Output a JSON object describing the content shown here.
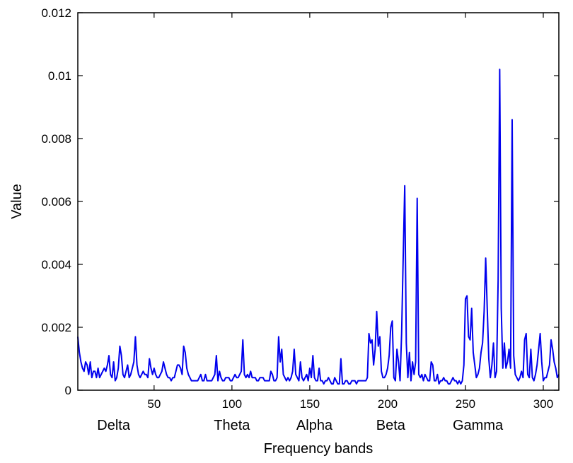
{
  "chart_data": {
    "type": "line",
    "xlabel": "Frequency bands",
    "ylabel": "Value",
    "xlim": [
      1,
      310
    ],
    "ylim": [
      0,
      0.012
    ],
    "x_ticks": [
      50,
      100,
      150,
      200,
      250,
      300
    ],
    "y_ticks": [
      0,
      0.002,
      0.004,
      0.006,
      0.008,
      0.01,
      0.012
    ],
    "y_tick_labels": [
      "0",
      "0.002",
      "0.004",
      "0.006",
      "0.008",
      "0.01",
      "0.012"
    ],
    "grid": false,
    "band_labels": [
      {
        "text": "Delta",
        "x": 24
      },
      {
        "text": "Theta",
        "x": 100
      },
      {
        "text": "Alpha",
        "x": 153
      },
      {
        "text": "Beta",
        "x": 202
      },
      {
        "text": "Gamma",
        "x": 258
      }
    ],
    "series": [
      {
        "color": "#0000ee",
        "points": [
          [
            1,
            0.0017
          ],
          [
            2,
            0.0012
          ],
          [
            3,
            0.0009
          ],
          [
            4,
            0.0007
          ],
          [
            5,
            0.0006
          ],
          [
            6,
            0.0009
          ],
          [
            7,
            0.0008
          ],
          [
            8,
            0.0005
          ],
          [
            9,
            0.0009
          ],
          [
            10,
            0.0004
          ],
          [
            11,
            0.0006
          ],
          [
            12,
            0.0006
          ],
          [
            13,
            0.0004
          ],
          [
            14,
            0.0007
          ],
          [
            15,
            0.0004
          ],
          [
            16,
            0.0005
          ],
          [
            17,
            0.0006
          ],
          [
            18,
            0.0007
          ],
          [
            19,
            0.0006
          ],
          [
            20,
            0.0008
          ],
          [
            21,
            0.0011
          ],
          [
            22,
            0.0005
          ],
          [
            23,
            0.0004
          ],
          [
            24,
            0.0009
          ],
          [
            25,
            0.0003
          ],
          [
            26,
            0.0004
          ],
          [
            27,
            0.0007
          ],
          [
            28,
            0.0014
          ],
          [
            29,
            0.0011
          ],
          [
            30,
            0.0005
          ],
          [
            31,
            0.0004
          ],
          [
            32,
            0.0006
          ],
          [
            33,
            0.0008
          ],
          [
            34,
            0.0004
          ],
          [
            35,
            0.0005
          ],
          [
            36,
            0.0007
          ],
          [
            37,
            0.0009
          ],
          [
            38,
            0.0017
          ],
          [
            39,
            0.0008
          ],
          [
            40,
            0.0005
          ],
          [
            41,
            0.0004
          ],
          [
            42,
            0.0005
          ],
          [
            43,
            0.0006
          ],
          [
            44,
            0.0005
          ],
          [
            45,
            0.0005
          ],
          [
            46,
            0.0004
          ],
          [
            47,
            0.001
          ],
          [
            48,
            0.0007
          ],
          [
            49,
            0.0005
          ],
          [
            50,
            0.0007
          ],
          [
            51,
            0.0005
          ],
          [
            52,
            0.0004
          ],
          [
            53,
            0.0004
          ],
          [
            54,
            0.0005
          ],
          [
            55,
            0.0006
          ],
          [
            56,
            0.0009
          ],
          [
            57,
            0.0007
          ],
          [
            58,
            0.0005
          ],
          [
            59,
            0.0004
          ],
          [
            60,
            0.0004
          ],
          [
            61,
            0.0003
          ],
          [
            62,
            0.0004
          ],
          [
            63,
            0.0004
          ],
          [
            64,
            0.0006
          ],
          [
            65,
            0.0008
          ],
          [
            66,
            0.0008
          ],
          [
            67,
            0.0007
          ],
          [
            68,
            0.0005
          ],
          [
            69,
            0.0014
          ],
          [
            70,
            0.0012
          ],
          [
            71,
            0.0007
          ],
          [
            72,
            0.0005
          ],
          [
            73,
            0.0004
          ],
          [
            74,
            0.0003
          ],
          [
            75,
            0.0003
          ],
          [
            76,
            0.0003
          ],
          [
            77,
            0.0003
          ],
          [
            78,
            0.0003
          ],
          [
            79,
            0.0004
          ],
          [
            80,
            0.0005
          ],
          [
            81,
            0.0003
          ],
          [
            82,
            0.0003
          ],
          [
            83,
            0.0005
          ],
          [
            84,
            0.0003
          ],
          [
            85,
            0.0003
          ],
          [
            86,
            0.0003
          ],
          [
            87,
            0.0003
          ],
          [
            88,
            0.0004
          ],
          [
            89,
            0.0005
          ],
          [
            90,
            0.0011
          ],
          [
            91,
            0.0003
          ],
          [
            92,
            0.0006
          ],
          [
            93,
            0.0004
          ],
          [
            94,
            0.0003
          ],
          [
            95,
            0.0003
          ],
          [
            96,
            0.0004
          ],
          [
            97,
            0.0004
          ],
          [
            98,
            0.0004
          ],
          [
            99,
            0.0003
          ],
          [
            100,
            0.0003
          ],
          [
            101,
            0.0004
          ],
          [
            102,
            0.0005
          ],
          [
            103,
            0.0004
          ],
          [
            104,
            0.0004
          ],
          [
            105,
            0.0005
          ],
          [
            106,
            0.0006
          ],
          [
            107,
            0.0016
          ],
          [
            108,
            0.0005
          ],
          [
            109,
            0.0004
          ],
          [
            110,
            0.0005
          ],
          [
            111,
            0.0004
          ],
          [
            112,
            0.0006
          ],
          [
            113,
            0.0004
          ],
          [
            114,
            0.0004
          ],
          [
            115,
            0.0004
          ],
          [
            116,
            0.0003
          ],
          [
            117,
            0.0003
          ],
          [
            118,
            0.0004
          ],
          [
            119,
            0.0004
          ],
          [
            120,
            0.0004
          ],
          [
            121,
            0.0003
          ],
          [
            122,
            0.0003
          ],
          [
            123,
            0.0003
          ],
          [
            124,
            0.0003
          ],
          [
            125,
            0.0006
          ],
          [
            126,
            0.0005
          ],
          [
            127,
            0.0003
          ],
          [
            128,
            0.0003
          ],
          [
            129,
            0.0004
          ],
          [
            130,
            0.0017
          ],
          [
            131,
            0.0009
          ],
          [
            132,
            0.0013
          ],
          [
            133,
            0.0005
          ],
          [
            134,
            0.0004
          ],
          [
            135,
            0.0003
          ],
          [
            136,
            0.0004
          ],
          [
            137,
            0.0003
          ],
          [
            138,
            0.0004
          ],
          [
            139,
            0.0006
          ],
          [
            140,
            0.0013
          ],
          [
            141,
            0.0005
          ],
          [
            142,
            0.0004
          ],
          [
            143,
            0.0003
          ],
          [
            144,
            0.0009
          ],
          [
            145,
            0.0004
          ],
          [
            146,
            0.0003
          ],
          [
            147,
            0.0004
          ],
          [
            148,
            0.0005
          ],
          [
            149,
            0.0003
          ],
          [
            150,
            0.0007
          ],
          [
            151,
            0.0004
          ],
          [
            152,
            0.0011
          ],
          [
            153,
            0.0004
          ],
          [
            154,
            0.0003
          ],
          [
            155,
            0.0003
          ],
          [
            156,
            0.0007
          ],
          [
            157,
            0.0003
          ],
          [
            158,
            0.0003
          ],
          [
            159,
            0.0002
          ],
          [
            160,
            0.0003
          ],
          [
            161,
            0.0003
          ],
          [
            162,
            0.0004
          ],
          [
            163,
            0.0003
          ],
          [
            164,
            0.0002
          ],
          [
            165,
            0.0002
          ],
          [
            166,
            0.0004
          ],
          [
            167,
            0.0003
          ],
          [
            168,
            0.0002
          ],
          [
            169,
            0.0002
          ],
          [
            170,
            0.001
          ],
          [
            171,
            0.0002
          ],
          [
            172,
            0.0002
          ],
          [
            173,
            0.0003
          ],
          [
            174,
            0.0003
          ],
          [
            175,
            0.0002
          ],
          [
            176,
            0.0002
          ],
          [
            177,
            0.0003
          ],
          [
            178,
            0.0003
          ],
          [
            179,
            0.0003
          ],
          [
            180,
            0.0002
          ],
          [
            181,
            0.0003
          ],
          [
            182,
            0.0003
          ],
          [
            183,
            0.0003
          ],
          [
            184,
            0.0003
          ],
          [
            185,
            0.0003
          ],
          [
            186,
            0.0003
          ],
          [
            187,
            0.0004
          ],
          [
            188,
            0.0018
          ],
          [
            189,
            0.0015
          ],
          [
            190,
            0.0016
          ],
          [
            191,
            0.0008
          ],
          [
            192,
            0.0013
          ],
          [
            193,
            0.0025
          ],
          [
            194,
            0.0014
          ],
          [
            195,
            0.0017
          ],
          [
            196,
            0.0006
          ],
          [
            197,
            0.0004
          ],
          [
            198,
            0.0004
          ],
          [
            199,
            0.0005
          ],
          [
            200,
            0.0007
          ],
          [
            201,
            0.0011
          ],
          [
            202,
            0.002
          ],
          [
            203,
            0.0022
          ],
          [
            204,
            0.0004
          ],
          [
            205,
            0.0003
          ],
          [
            206,
            0.0013
          ],
          [
            207,
            0.0009
          ],
          [
            208,
            0.0003
          ],
          [
            209,
            0.0018
          ],
          [
            210,
            0.0042
          ],
          [
            211,
            0.0065
          ],
          [
            212,
            0.0015
          ],
          [
            213,
            0.0004
          ],
          [
            214,
            0.0012
          ],
          [
            215,
            0.0003
          ],
          [
            216,
            0.0009
          ],
          [
            217,
            0.0005
          ],
          [
            218,
            0.0009
          ],
          [
            219,
            0.0061
          ],
          [
            220,
            0.0005
          ],
          [
            221,
            0.0004
          ],
          [
            222,
            0.0005
          ],
          [
            223,
            0.0003
          ],
          [
            224,
            0.0005
          ],
          [
            225,
            0.0004
          ],
          [
            226,
            0.0003
          ],
          [
            227,
            0.0003
          ],
          [
            228,
            0.0009
          ],
          [
            229,
            0.0008
          ],
          [
            230,
            0.0003
          ],
          [
            231,
            0.0003
          ],
          [
            232,
            0.0005
          ],
          [
            233,
            0.0002
          ],
          [
            234,
            0.0003
          ],
          [
            235,
            0.0003
          ],
          [
            236,
            0.0004
          ],
          [
            237,
            0.0003
          ],
          [
            238,
            0.0003
          ],
          [
            239,
            0.0002
          ],
          [
            240,
            0.0002
          ],
          [
            241,
            0.0003
          ],
          [
            242,
            0.0004
          ],
          [
            243,
            0.0003
          ],
          [
            244,
            0.0003
          ],
          [
            245,
            0.0002
          ],
          [
            246,
            0.0003
          ],
          [
            247,
            0.0002
          ],
          [
            248,
            0.0003
          ],
          [
            249,
            0.0008
          ],
          [
            250,
            0.0029
          ],
          [
            251,
            0.003
          ],
          [
            252,
            0.0017
          ],
          [
            253,
            0.0016
          ],
          [
            254,
            0.0026
          ],
          [
            255,
            0.0012
          ],
          [
            256,
            0.0008
          ],
          [
            257,
            0.0004
          ],
          [
            258,
            0.0005
          ],
          [
            259,
            0.0007
          ],
          [
            260,
            0.0012
          ],
          [
            261,
            0.0015
          ],
          [
            262,
            0.0025
          ],
          [
            263,
            0.0042
          ],
          [
            264,
            0.0026
          ],
          [
            265,
            0.001
          ],
          [
            266,
            0.0004
          ],
          [
            267,
            0.0008
          ],
          [
            268,
            0.0015
          ],
          [
            269,
            0.0004
          ],
          [
            270,
            0.0006
          ],
          [
            271,
            0.0035
          ],
          [
            272,
            0.0102
          ],
          [
            273,
            0.0026
          ],
          [
            274,
            0.0007
          ],
          [
            275,
            0.0015
          ],
          [
            276,
            0.0007
          ],
          [
            277,
            0.0009
          ],
          [
            278,
            0.0013
          ],
          [
            279,
            0.0007
          ],
          [
            280,
            0.0086
          ],
          [
            281,
            0.0011
          ],
          [
            282,
            0.0005
          ],
          [
            283,
            0.0004
          ],
          [
            284,
            0.0003
          ],
          [
            285,
            0.0004
          ],
          [
            286,
            0.0006
          ],
          [
            287,
            0.0004
          ],
          [
            288,
            0.0016
          ],
          [
            289,
            0.0018
          ],
          [
            290,
            0.0005
          ],
          [
            291,
            0.0004
          ],
          [
            292,
            0.0013
          ],
          [
            293,
            0.0004
          ],
          [
            294,
            0.0003
          ],
          [
            295,
            0.0005
          ],
          [
            296,
            0.0008
          ],
          [
            297,
            0.0013
          ],
          [
            298,
            0.0018
          ],
          [
            299,
            0.0009
          ],
          [
            300,
            0.0003
          ],
          [
            301,
            0.0004
          ],
          [
            302,
            0.0004
          ],
          [
            303,
            0.0006
          ],
          [
            304,
            0.0008
          ],
          [
            305,
            0.0016
          ],
          [
            306,
            0.0013
          ],
          [
            307,
            0.0009
          ],
          [
            308,
            0.0007
          ],
          [
            309,
            0.0004
          ],
          [
            310,
            0.0005
          ]
        ]
      }
    ]
  }
}
